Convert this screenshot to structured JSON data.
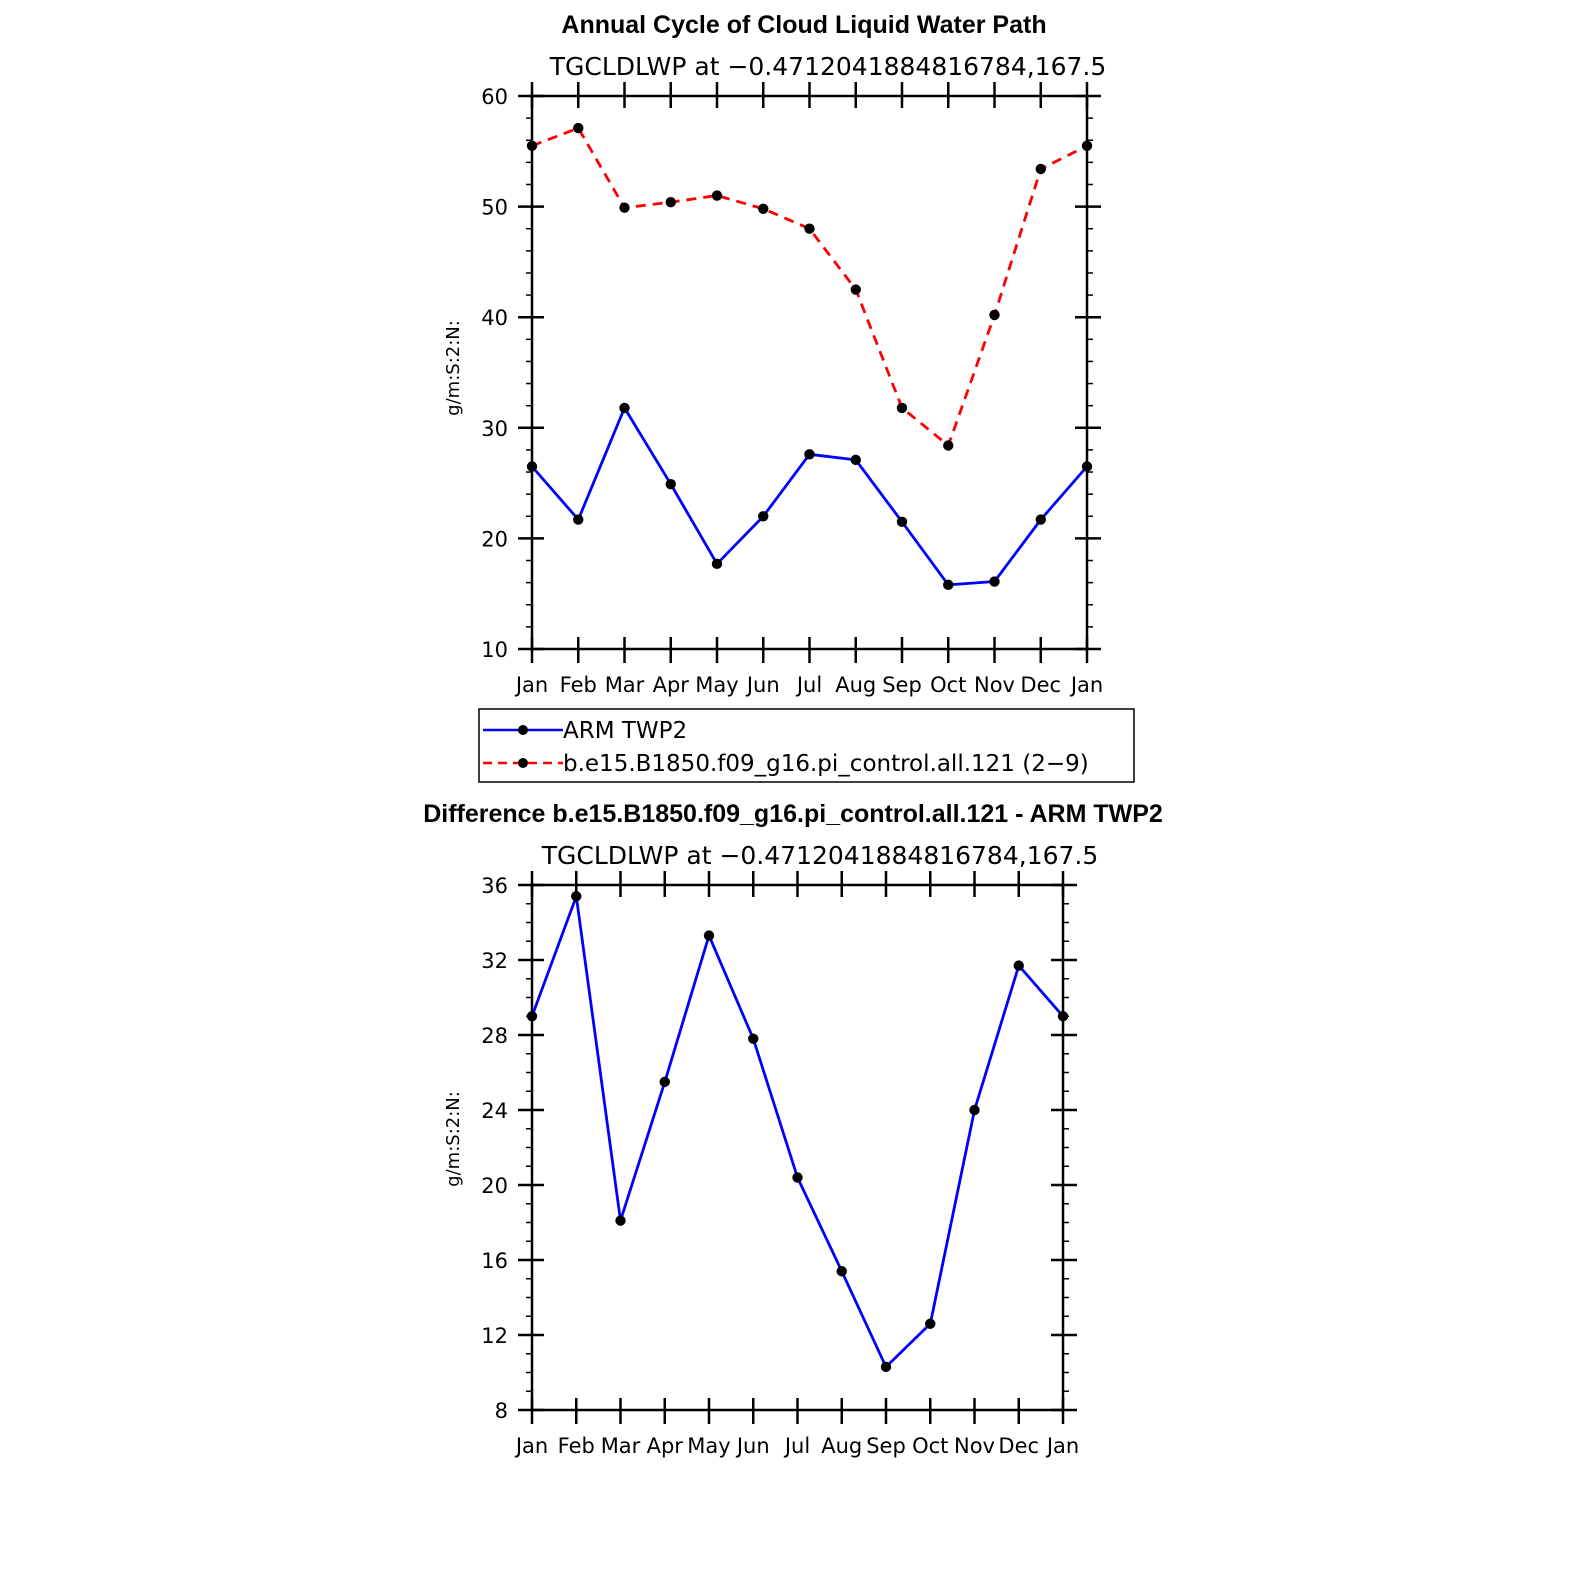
{
  "chart_data": [
    {
      "type": "line",
      "title": "Annual Cycle of Cloud Liquid Water Path",
      "subtitle": "TGCLDLWP at −0.4712041884816784,167.5",
      "xlabel": "",
      "ylabel": "g/m:S:2:N:",
      "categories": [
        "Jan",
        "Feb",
        "Mar",
        "Apr",
        "May",
        "Jun",
        "Jul",
        "Aug",
        "Sep",
        "Oct",
        "Nov",
        "Dec",
        "Jan"
      ],
      "ylim": [
        10,
        60
      ],
      "yticks": [
        10,
        20,
        30,
        40,
        50,
        60
      ],
      "grid": false,
      "legend_position": "bottom",
      "series": [
        {
          "name": "ARM TWP2",
          "color": "#0000ff",
          "dash": "solid",
          "values": [
            26.5,
            21.7,
            31.8,
            24.9,
            17.7,
            22.0,
            27.6,
            27.1,
            21.5,
            15.8,
            16.1,
            21.7,
            26.5
          ]
        },
        {
          "name": "b.e15.B1850.f09_g16.pi_control.all.121 (2−9)",
          "color": "#ff0000",
          "dash": "dashed",
          "values": [
            55.5,
            57.1,
            49.9,
            50.4,
            51.0,
            49.8,
            48.0,
            42.5,
            31.8,
            28.4,
            40.2,
            53.4,
            55.5
          ]
        }
      ]
    },
    {
      "type": "line",
      "title": "Difference b.e15.B1850.f09_g16.pi_control.all.121 - ARM TWP2",
      "subtitle": "TGCLDLWP at −0.4712041884816784,167.5",
      "xlabel": "",
      "ylabel": "g/m:S:2:N:",
      "categories": [
        "Jan",
        "Feb",
        "Mar",
        "Apr",
        "May",
        "Jun",
        "Jul",
        "Aug",
        "Sep",
        "Oct",
        "Nov",
        "Dec",
        "Jan"
      ],
      "ylim": [
        8,
        36
      ],
      "yticks": [
        8,
        12,
        16,
        20,
        24,
        28,
        32,
        36
      ],
      "grid": false,
      "series": [
        {
          "color": "#0000ff",
          "dash": "solid",
          "values": [
            29.0,
            35.4,
            18.1,
            25.5,
            33.3,
            27.8,
            20.4,
            15.4,
            10.3,
            12.6,
            24.0,
            31.7,
            29.0
          ]
        }
      ]
    }
  ]
}
